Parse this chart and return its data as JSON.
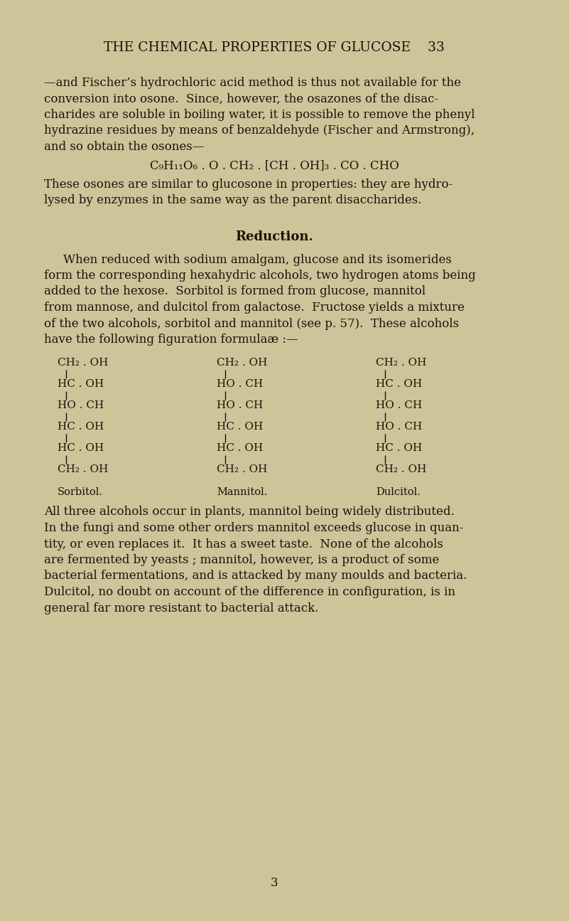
{
  "bg_color": "#cdc49a",
  "text_color": "#1c1208",
  "header": "THE CHEMICAL PROPERTIES OF GLUCOSE    33",
  "para1_lines": [
    "—and Fischer’s hydrochloric acid method is thus not available for the",
    "conversion into osone.  Since, however, the osazones of the disac-",
    "charides are soluble in boiling water, it is possible to remove the phenyl",
    "hydrazine residues by means of benzaldehyde (Fischer and Armstrong),",
    "and so obtain the osones—"
  ],
  "formula_line": "C₉H₁₁O₆ . O . CH₂ . [CH . OH]₃ . CO . CHO",
  "para2_lines": [
    "These osones are similar to glucosone in properties: they are hydro-",
    "lysed by enzymes in the same way as the parent disaccharides."
  ],
  "section_title": "Reduction.",
  "para3_lines": [
    "When reduced with sodium amalgam, glucose and its isomerides",
    "form the corresponding hexahydric alcohols, two hydrogen atoms being",
    "added to the hexose.  Sorbitol is formed from glucose, mannitol",
    "from mannose, and dulcitol from galactose.  Fructose yields a mixture",
    "of the two alcohols, sorbitol and mannitol (see p. 57).  These alcohols",
    "have the following figuration formulaæ :—"
  ],
  "sorbitol_rows": [
    "CH₂ . OH",
    "HC . OH",
    "HO . CH",
    "HC . OH",
    "HC . OH",
    "CH₂ . OH"
  ],
  "mannitol_rows": [
    "CH₂ . OH",
    "HO . CH",
    "HO . CH",
    "HC . OH",
    "HC . OH",
    "CH₂ . OH"
  ],
  "dulcitol_rows": [
    "CH₂ . OH",
    "HC . OH",
    "HO . CH",
    "HO . CH",
    "HC . OH",
    "CH₂ . OH"
  ],
  "para4_lines": [
    "All three alcohols occur in plants, mannitol being widely distributed.",
    "In the fungi and some other orders mannitol exceeds glucose in quan-",
    "tity, or even replaces it.  It has a sweet taste.  None of the alcohols",
    "are fermented by yeasts ; mannitol, however, is a product of some",
    "bacterial fermentations, and is attacked by many moulds and bacteria.",
    "Dulcitol, no doubt on account of the difference in configuration, is in",
    "general far more resistant to bacterial attack."
  ],
  "page_number": "3",
  "text_size": 12.0,
  "header_size": 13.5,
  "struct_size": 11.0
}
